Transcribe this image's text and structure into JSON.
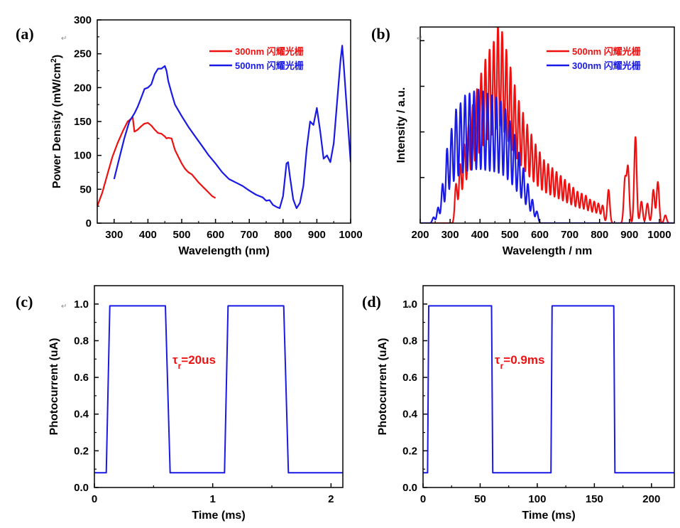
{
  "colors": {
    "red": "#ee1111",
    "blue": "#1a1ae6",
    "axis": "#000000",
    "annotation": "#ee1111"
  },
  "chart_data": [
    {
      "panel": "(a)",
      "type": "line",
      "xlabel": "Wavelength (nm)",
      "ylabel": "Power Density (mW/cm",
      "ylabel_sup": "2",
      "ylabel_end": ")",
      "xlim": [
        250,
        1000
      ],
      "ylim": [
        0,
        300
      ],
      "xticks": [
        300,
        400,
        500,
        600,
        700,
        800,
        900,
        1000
      ],
      "yticks": [
        0,
        50,
        100,
        150,
        200,
        250,
        300
      ],
      "legend_position": "top-right",
      "series": [
        {
          "name": "300nm 闪耀光栅",
          "color": "#ee1111",
          "x": [
            250,
            265,
            280,
            295,
            310,
            325,
            340,
            355,
            360,
            370,
            380,
            390,
            400,
            410,
            420,
            430,
            440,
            450,
            455,
            460,
            470,
            480,
            490,
            500,
            510,
            520,
            530,
            540,
            550,
            560,
            570,
            580,
            590,
            600
          ],
          "y": [
            25,
            45,
            72,
            98,
            118,
            135,
            150,
            156,
            135,
            138,
            143,
            147,
            148,
            144,
            138,
            133,
            132,
            128,
            125,
            126,
            125,
            108,
            98,
            88,
            80,
            75,
            72,
            66,
            60,
            55,
            50,
            45,
            40,
            37
          ]
        },
        {
          "name": "500nm 闪耀光栅",
          "color": "#1a1ae6",
          "x": [
            300,
            315,
            330,
            345,
            360,
            370,
            380,
            390,
            400,
            410,
            420,
            430,
            440,
            450,
            455,
            460,
            470,
            480,
            500,
            520,
            540,
            560,
            580,
            600,
            620,
            640,
            660,
            680,
            700,
            720,
            740,
            750,
            760,
            770,
            780,
            790,
            800,
            810,
            815,
            820,
            830,
            840,
            850,
            860,
            870,
            880,
            890,
            900,
            910,
            920,
            930,
            940,
            950,
            960,
            970,
            975,
            980,
            990,
            1000
          ],
          "y": [
            65,
            95,
            125,
            150,
            162,
            172,
            185,
            198,
            200,
            205,
            220,
            228,
            228,
            232,
            225,
            210,
            192,
            175,
            158,
            142,
            128,
            114,
            100,
            88,
            75,
            65,
            60,
            55,
            48,
            42,
            38,
            33,
            34,
            27,
            24,
            22,
            40,
            88,
            90,
            70,
            35,
            22,
            30,
            55,
            110,
            150,
            145,
            170,
            135,
            95,
            100,
            90,
            118,
            180,
            240,
            262,
            230,
            160,
            90
          ]
        }
      ]
    },
    {
      "panel": "(b)",
      "type": "line",
      "xlabel": "Wavelength / nm",
      "ylabel": "Intensity / a.u.",
      "xlim": [
        200,
        1050
      ],
      "ylim": [
        0,
        1
      ],
      "xticks": [
        200,
        300,
        400,
        500,
        600,
        700,
        800,
        900,
        1000
      ],
      "legend_position": "top-right",
      "series": [
        {
          "name": "500nm 闪耀光栅",
          "color": "#ee1111",
          "peak_wavelengths": [
            320,
            334,
            348,
            362,
            376,
            390,
            404,
            418,
            432,
            446,
            460,
            474,
            488,
            502,
            516,
            530,
            544,
            558,
            572,
            586,
            600,
            614,
            628,
            642,
            656,
            670,
            684,
            698,
            712,
            726,
            740,
            754,
            768,
            782,
            796,
            810,
            830,
            885,
            895,
            920,
            940,
            960,
            980,
            995,
            1020
          ],
          "peak_intensities": [
            0.2,
            0.3,
            0.4,
            0.5,
            0.6,
            0.68,
            0.76,
            0.83,
            0.88,
            0.92,
            1.0,
            0.97,
            0.88,
            0.79,
            0.7,
            0.62,
            0.56,
            0.5,
            0.45,
            0.4,
            0.36,
            0.32,
            0.3,
            0.28,
            0.26,
            0.24,
            0.22,
            0.2,
            0.18,
            0.16,
            0.15,
            0.14,
            0.12,
            0.11,
            0.1,
            0.09,
            0.17,
            0.22,
            0.28,
            0.44,
            0.11,
            0.1,
            0.17,
            0.21,
            0.04
          ]
        },
        {
          "name": "300nm 闪耀光栅",
          "color": "#1a1ae6",
          "peak_wavelengths": [
            245,
            260,
            275,
            290,
            305,
            320,
            335,
            350,
            365,
            380,
            395,
            410,
            425,
            440,
            455,
            470,
            485,
            500,
            515,
            530,
            545,
            560,
            575,
            590
          ],
          "peak_intensities": [
            0.03,
            0.08,
            0.2,
            0.38,
            0.48,
            0.58,
            0.61,
            0.65,
            0.66,
            0.67,
            0.68,
            0.67,
            0.66,
            0.65,
            0.64,
            0.62,
            0.58,
            0.52,
            0.45,
            0.36,
            0.28,
            0.2,
            0.12,
            0.06
          ]
        }
      ]
    },
    {
      "panel": "(c)",
      "type": "line",
      "xlabel": "Time (ms)",
      "ylabel": "Photocurrent (uA)",
      "xlim": [
        0,
        2.1
      ],
      "ylim": [
        0,
        1.1
      ],
      "xticks": [
        0,
        1,
        2
      ],
      "yticks": [
        "0.0",
        "0.2",
        "0.4",
        "0.6",
        "0.8",
        "1.0"
      ],
      "annotation_main": "τ",
      "annotation_sub": "r",
      "annotation_rest": "=20us",
      "series": [
        {
          "color": "#1a1ae6",
          "x": [
            0,
            0.1,
            0.13,
            0.6,
            0.64,
            1.1,
            1.13,
            1.6,
            1.64,
            2.1
          ],
          "y": [
            0.08,
            0.08,
            0.99,
            0.99,
            0.08,
            0.08,
            0.99,
            0.99,
            0.08,
            0.08
          ]
        }
      ]
    },
    {
      "panel": "(d)",
      "type": "line",
      "xlabel": "Time (ms)",
      "ylabel": "Photocurrent (uA)",
      "xlim": [
        0,
        220
      ],
      "ylim": [
        0,
        1.1
      ],
      "xticks": [
        0,
        50,
        100,
        150,
        200
      ],
      "yticks": [
        "0.0",
        "0.2",
        "0.4",
        "0.6",
        "0.8",
        "1.0"
      ],
      "annotation_main": "τ",
      "annotation_sub": "r",
      "annotation_rest": "=0.9ms",
      "series": [
        {
          "color": "#1a1ae6",
          "x": [
            0,
            4,
            5,
            60,
            61,
            112,
            113,
            167,
            168,
            220
          ],
          "y": [
            0.08,
            0.08,
            0.99,
            0.99,
            0.08,
            0.08,
            0.99,
            0.99,
            0.08,
            0.08
          ]
        }
      ]
    }
  ]
}
